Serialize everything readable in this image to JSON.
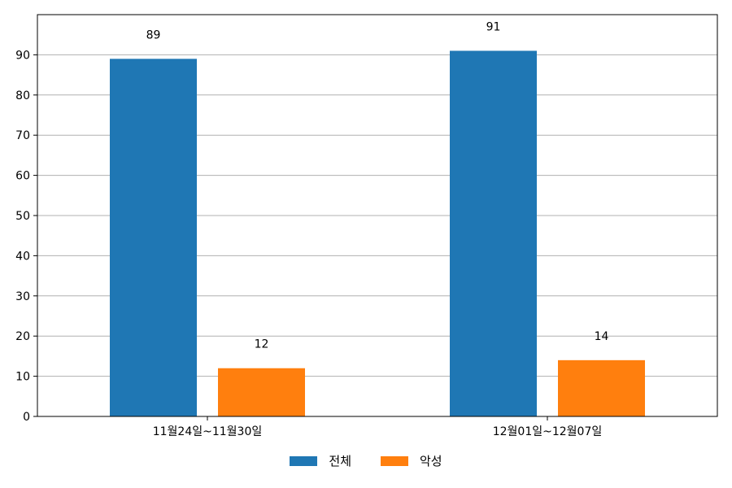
{
  "chart_data": {
    "type": "bar",
    "categories": [
      "11월24일~11월30일",
      "12월01일~12월07일"
    ],
    "series": [
      {
        "name": "전체",
        "values": [
          89,
          91
        ],
        "color": "#1f77b4"
      },
      {
        "name": "악성",
        "values": [
          12,
          14
        ],
        "color": "#ff7f0e"
      }
    ],
    "ylim": [
      0,
      100
    ],
    "yticks": [
      0,
      10,
      20,
      30,
      40,
      50,
      60,
      70,
      80,
      90
    ],
    "grid": true,
    "legend_position": "bottom-center",
    "data_labels": true
  }
}
